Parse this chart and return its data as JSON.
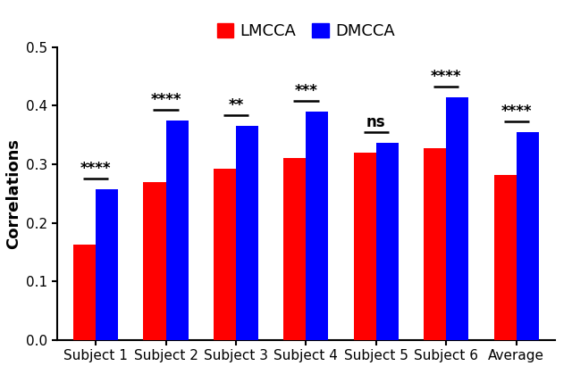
{
  "categories": [
    "Subject 1",
    "Subject 2",
    "Subject 3",
    "Subject 4",
    "Subject 5",
    "Subject 6",
    "Average"
  ],
  "lmcca_values": [
    0.163,
    0.27,
    0.293,
    0.311,
    0.32,
    0.328,
    0.281
  ],
  "dmcca_values": [
    0.257,
    0.375,
    0.365,
    0.39,
    0.337,
    0.414,
    0.355
  ],
  "lmcca_color": "#FF0000",
  "dmcca_color": "#0000FF",
  "ylabel": "Correlations",
  "ylim": [
    0.0,
    0.5
  ],
  "yticks": [
    0.0,
    0.1,
    0.2,
    0.3,
    0.4,
    0.5
  ],
  "legend_labels": [
    "LMCCA",
    "DMCCA"
  ],
  "significance_labels": [
    "****",
    "****",
    "**",
    "***",
    "ns",
    "****",
    "****"
  ],
  "bar_width": 0.32,
  "background_color": "#FFFFFF",
  "axis_fontsize": 13,
  "tick_fontsize": 11,
  "sig_fontsize": 12,
  "legend_fontsize": 13
}
